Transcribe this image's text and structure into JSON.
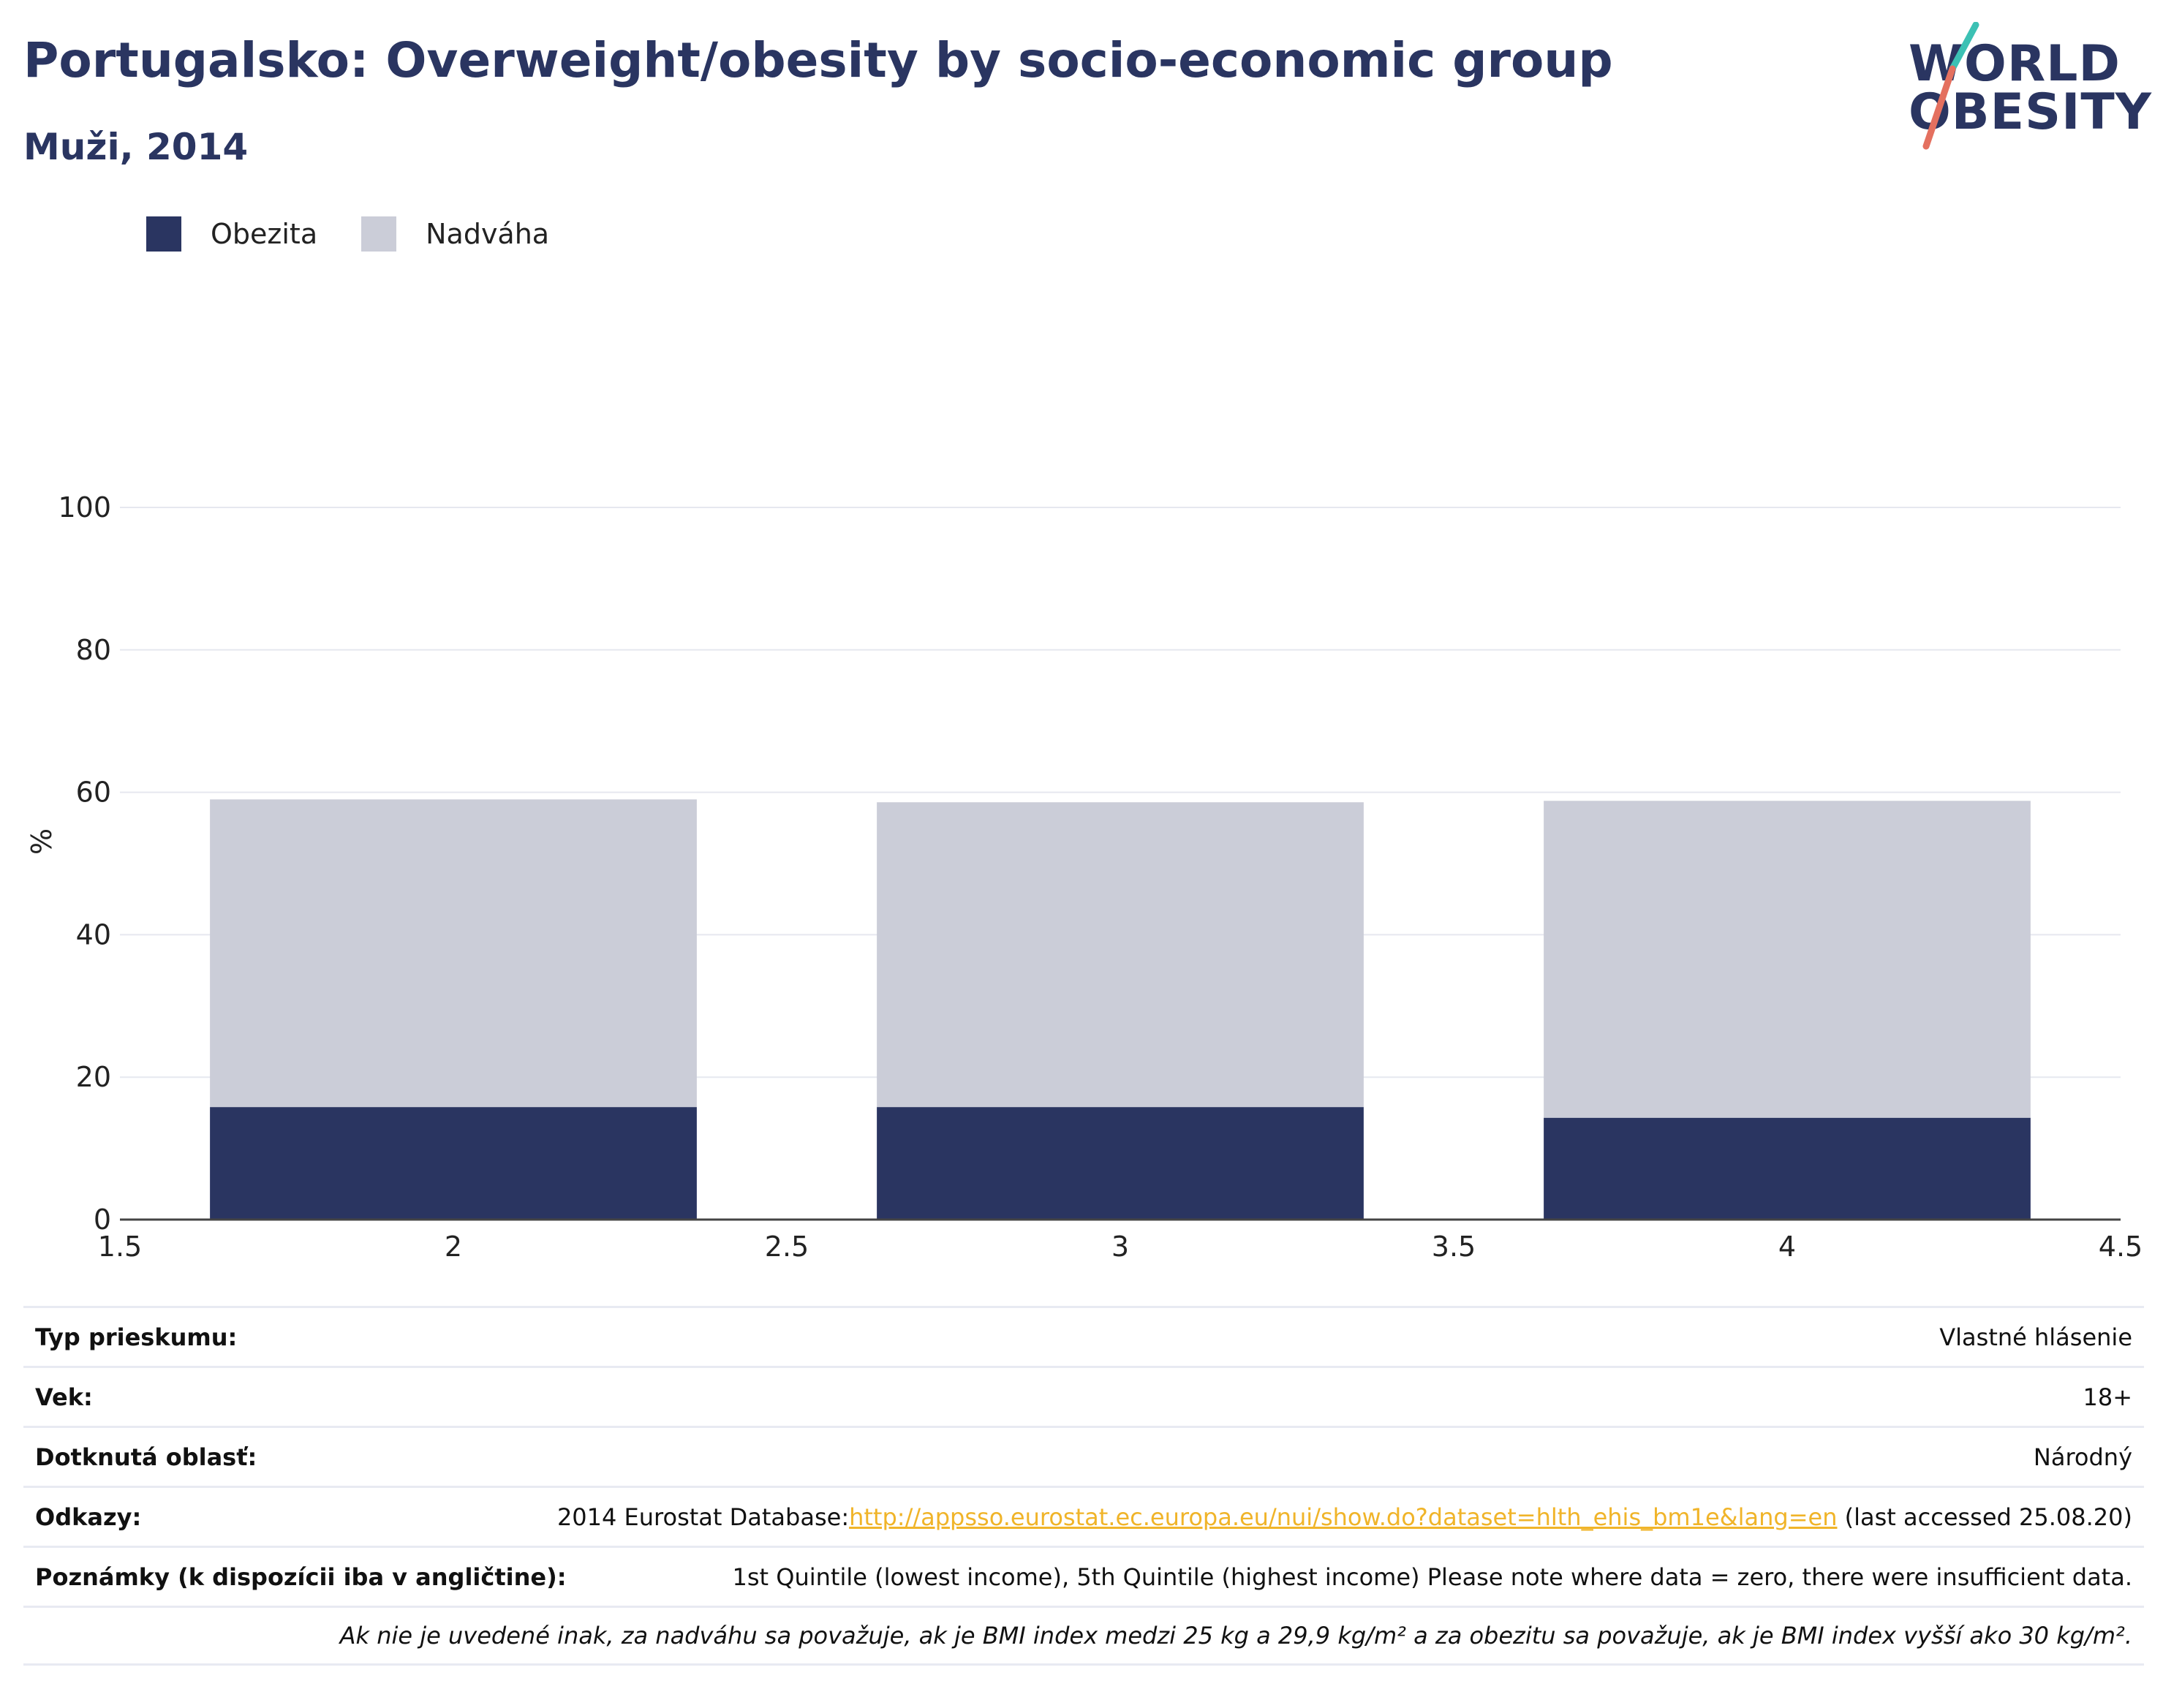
{
  "header": {
    "title": "Portugalsko: Overweight/obesity by socio-economic group",
    "subtitle": "Muži, 2014"
  },
  "logo": {
    "line1": "WORLD",
    "line2": "OBESITY"
  },
  "legend": [
    {
      "label": "Obezita",
      "color": "#2a3561"
    },
    {
      "label": "Nadváha",
      "color": "#cbcdd8"
    }
  ],
  "chart_data": {
    "type": "bar",
    "stacked": true,
    "x": [
      2,
      3,
      4
    ],
    "series": [
      {
        "name": "Obezita",
        "color": "#2a3561",
        "values": [
          15.8,
          15.8,
          14.3
        ]
      },
      {
        "name": "Nadváha",
        "color": "#cbcdd8",
        "values": [
          43.2,
          42.8,
          44.5
        ]
      }
    ],
    "xlim": [
      1.5,
      4.5
    ],
    "ylim": [
      0,
      100
    ],
    "xticks": [
      "1.5",
      "2",
      "2.5",
      "3",
      "3.5",
      "4",
      "4.5"
    ],
    "yticks": [
      "0",
      "20",
      "40",
      "60",
      "80",
      "100"
    ],
    "ylabel": "%",
    "grid": true,
    "legend_position": "top-left"
  },
  "info": {
    "rows": [
      {
        "label": "Typ prieskumu:",
        "value": "Vlastné hlásenie"
      },
      {
        "label": "Vek:",
        "value": "18+"
      },
      {
        "label": "Dotknutá oblasť:",
        "value": "Národný"
      }
    ],
    "references": {
      "label": "Odkazy:",
      "prefix": "2014 Eurostat Database:",
      "link": "http://appsso.eurostat.ec.europa.eu/nui/show.do?dataset=hlth_ehis_bm1e&lang=en",
      "suffix": " (last accessed 25.08.20)"
    },
    "notes": {
      "label": "Poznámky (k dispozícii iba v angličtine):",
      "value": "1st Quintile (lowest income), 5th Quintile (highest income) Please note where data = zero, there were insufficient data."
    },
    "footnote": "Ak nie je uvedené inak, za nadváhu sa považuje, ak je BMI index medzi 25 kg a 29,9 kg/m² a za obezitu sa považuje, ak je BMI index vyšší ako 30 kg/m²."
  }
}
